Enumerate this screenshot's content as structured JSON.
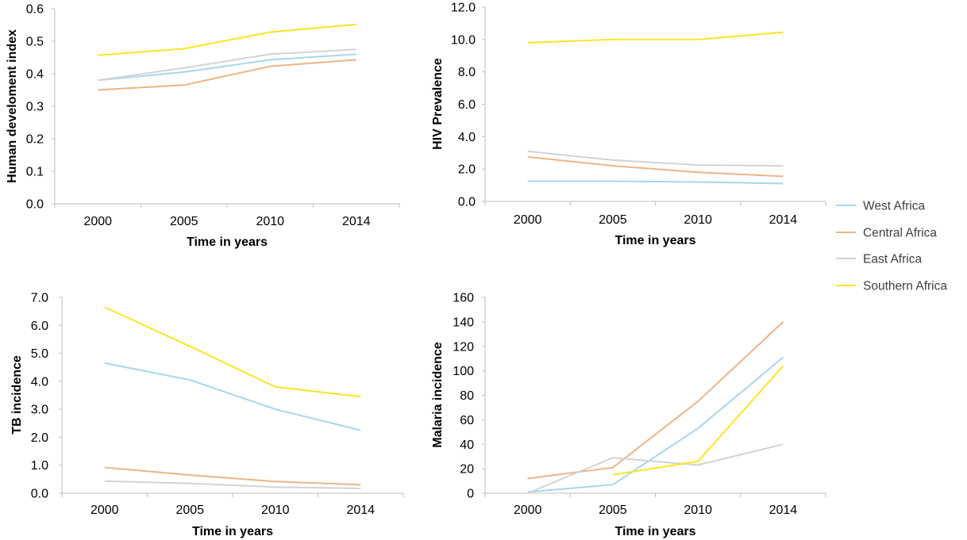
{
  "colors": {
    "West Africa": "#a6d7ec",
    "Central Africa": "#ecb587",
    "East Africa": "#d3d3d3",
    "Southern Africa": "#fbe524"
  },
  "legend": [
    "West Africa",
    "Central Africa",
    "East Africa",
    "Southern Africa"
  ],
  "chart_data": [
    {
      "type": "line",
      "categories": [
        "2000",
        "2005",
        "2010",
        "2014"
      ],
      "xlabel": "Time in years",
      "ylabel": "Human develoment index",
      "ylim": [
        0,
        0.6
      ],
      "yticks": [
        "0.0",
        "0.1",
        "0.2",
        "0.3",
        "0.4",
        "0.5",
        "0.6"
      ],
      "grid": false,
      "series": [
        {
          "name": "West Africa",
          "values": [
            0.38,
            0.405,
            0.443,
            0.46
          ]
        },
        {
          "name": "Central Africa",
          "values": [
            0.35,
            0.365,
            0.423,
            0.443
          ]
        },
        {
          "name": "East Africa",
          "values": [
            0.38,
            0.418,
            0.46,
            0.475
          ]
        },
        {
          "name": "Southern Africa",
          "values": [
            0.457,
            0.477,
            0.528,
            0.552
          ]
        }
      ]
    },
    {
      "type": "line",
      "categories": [
        "2000",
        "2005",
        "2010",
        "2014"
      ],
      "xlabel": "Time in years",
      "ylabel": "HIV Prevalence",
      "ylim": [
        0,
        12
      ],
      "yticks": [
        "0.0",
        "2.0",
        "4.0",
        "6.0",
        "8.0",
        "10.0",
        "12.0"
      ],
      "grid": false,
      "series": [
        {
          "name": "West Africa",
          "values": [
            1.25,
            1.25,
            1.2,
            1.1
          ]
        },
        {
          "name": "Central Africa",
          "values": [
            2.75,
            2.2,
            1.8,
            1.55
          ]
        },
        {
          "name": "East Africa",
          "values": [
            3.1,
            2.55,
            2.25,
            2.2
          ]
        },
        {
          "name": "Southern Africa",
          "values": [
            9.8,
            10.0,
            10.0,
            10.45
          ]
        }
      ]
    },
    {
      "type": "line",
      "categories": [
        "2000",
        "2005",
        "2010",
        "2014"
      ],
      "xlabel": "Time in years",
      "ylabel": "TB incidence",
      "ylim": [
        0,
        7
      ],
      "yticks": [
        "0.0",
        "1.0",
        "2.0",
        "3.0",
        "4.0",
        "5.0",
        "6.0",
        "7.0"
      ],
      "grid": false,
      "series": [
        {
          "name": "West Africa",
          "values": [
            4.65,
            4.05,
            3.0,
            2.25
          ]
        },
        {
          "name": "Central Africa",
          "values": [
            0.92,
            0.65,
            0.42,
            0.3
          ]
        },
        {
          "name": "East Africa",
          "values": [
            0.43,
            0.35,
            0.22,
            0.17
          ]
        },
        {
          "name": "Southern Africa",
          "values": [
            6.65,
            5.25,
            3.8,
            3.45
          ]
        }
      ]
    },
    {
      "type": "line",
      "categories": [
        "2000",
        "2005",
        "2010",
        "2014"
      ],
      "xlabel": "Time in years",
      "ylabel": "Malaria incidence",
      "ylim": [
        0,
        160
      ],
      "yticks": [
        "0",
        "20",
        "40",
        "60",
        "80",
        "100",
        "120",
        "140",
        "160"
      ],
      "grid": false,
      "series": [
        {
          "name": "West Africa",
          "values": [
            1,
            7,
            53,
            111
          ]
        },
        {
          "name": "Central Africa",
          "values": [
            12,
            21,
            75,
            140
          ]
        },
        {
          "name": "East Africa",
          "values": [
            0,
            29,
            23,
            40
          ]
        },
        {
          "name": "Southern Africa",
          "values": [
            null,
            15,
            26,
            104
          ]
        }
      ]
    }
  ]
}
